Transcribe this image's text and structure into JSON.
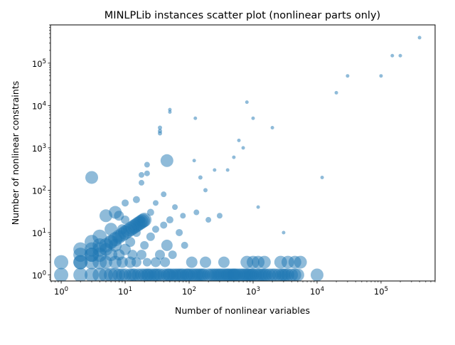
{
  "chart_data": {
    "type": "scatter",
    "title": "MINLPLib instances scatter plot (nonlinear parts only)",
    "xlabel": "Number of nonlinear variables",
    "ylabel": "Number of nonlinear constraints",
    "x_scale": "log",
    "y_scale": "log",
    "xlim": [
      0.68,
      700000
    ],
    "ylim": [
      0.72,
      800000
    ],
    "x_ticks": [
      1,
      10,
      100,
      1000,
      10000,
      100000
    ],
    "y_ticks": [
      1,
      10,
      100,
      1000,
      10000,
      100000
    ],
    "x_tick_labels": [
      "10^0",
      "10^1",
      "10^2",
      "10^3",
      "10^4",
      "10^5"
    ],
    "y_tick_labels": [
      "10^0",
      "10^1",
      "10^2",
      "10^3",
      "10^4",
      "10^5"
    ],
    "grid": false,
    "legend": "none",
    "marker_color": "#1f77b4",
    "marker_alpha": 0.5,
    "series": [
      {
        "points": [
          [
            1,
            1,
            20
          ],
          [
            1,
            2,
            20
          ],
          [
            2,
            1,
            20
          ],
          [
            2,
            2,
            20
          ],
          [
            2,
            3,
            20
          ],
          [
            2,
            4,
            20
          ],
          [
            3,
            1,
            20
          ],
          [
            3,
            2,
            20
          ],
          [
            3,
            3,
            20
          ],
          [
            3,
            4,
            20
          ],
          [
            3,
            6,
            20
          ],
          [
            3,
            200,
            18
          ],
          [
            4,
            1,
            20
          ],
          [
            4,
            2,
            20
          ],
          [
            4,
            3,
            20
          ],
          [
            4,
            5,
            20
          ],
          [
            4,
            8,
            20
          ],
          [
            5,
            1,
            20
          ],
          [
            5,
            2,
            18
          ],
          [
            5,
            4,
            18
          ],
          [
            5,
            25,
            18
          ],
          [
            6,
            1,
            20
          ],
          [
            6,
            3,
            18
          ],
          [
            6,
            6,
            18
          ],
          [
            6,
            12,
            18
          ],
          [
            7,
            1,
            20
          ],
          [
            7,
            2,
            18
          ],
          [
            7,
            5,
            18
          ],
          [
            7,
            30,
            18
          ],
          [
            8,
            1,
            18
          ],
          [
            8,
            3,
            16
          ],
          [
            8,
            8,
            16
          ],
          [
            8,
            25,
            14
          ],
          [
            9,
            1,
            18
          ],
          [
            9,
            2,
            16
          ],
          [
            9,
            12,
            14
          ],
          [
            10,
            1,
            18
          ],
          [
            10,
            4,
            16
          ],
          [
            10,
            20,
            12
          ],
          [
            10,
            50,
            10
          ],
          [
            12,
            1,
            18
          ],
          [
            12,
            2,
            16
          ],
          [
            12,
            6,
            14
          ],
          [
            13,
            1,
            18
          ],
          [
            13,
            3,
            14
          ],
          [
            14,
            1,
            18
          ],
          [
            15,
            2,
            14
          ],
          [
            15,
            10,
            12
          ],
          [
            15,
            60,
            10
          ],
          [
            16,
            1,
            18
          ],
          [
            18,
            1,
            18
          ],
          [
            18,
            3,
            14
          ],
          [
            18,
            20,
            10
          ],
          [
            18,
            150,
            8
          ],
          [
            18,
            230,
            8
          ],
          [
            20,
            1,
            18
          ],
          [
            20,
            5,
            12
          ],
          [
            22,
            1,
            18
          ],
          [
            22,
            2,
            12
          ],
          [
            22,
            400,
            8
          ],
          [
            22,
            250,
            8
          ],
          [
            23,
            1,
            18
          ],
          [
            25,
            1,
            18
          ],
          [
            25,
            8,
            12
          ],
          [
            25,
            30,
            10
          ],
          [
            28,
            1,
            18
          ],
          [
            30,
            1,
            18
          ],
          [
            30,
            2,
            14
          ],
          [
            30,
            12,
            10
          ],
          [
            30,
            50,
            8
          ],
          [
            32,
            1,
            18
          ],
          [
            35,
            1,
            18
          ],
          [
            35,
            3,
            14
          ],
          [
            35,
            3000,
            6
          ],
          [
            35,
            2500,
            6
          ],
          [
            35,
            2200,
            6
          ],
          [
            40,
            1,
            18
          ],
          [
            40,
            15,
            10
          ],
          [
            40,
            80,
            8
          ],
          [
            42,
            2,
            14
          ],
          [
            45,
            1,
            18
          ],
          [
            45,
            500,
            18
          ],
          [
            45,
            5,
            16
          ],
          [
            48,
            1,
            18
          ],
          [
            50,
            1,
            18
          ],
          [
            50,
            20,
            10
          ],
          [
            50,
            8000,
            5
          ],
          [
            50,
            7000,
            5
          ],
          [
            55,
            1,
            18
          ],
          [
            55,
            3,
            12
          ],
          [
            60,
            1,
            18
          ],
          [
            60,
            40,
            8
          ],
          [
            65,
            1,
            18
          ],
          [
            70,
            1,
            18
          ],
          [
            70,
            10,
            10
          ],
          [
            75,
            1,
            18
          ],
          [
            80,
            1,
            18
          ],
          [
            80,
            25,
            8
          ],
          [
            85,
            5,
            10
          ],
          [
            90,
            1,
            18
          ],
          [
            95,
            1,
            18
          ],
          [
            100,
            1,
            18
          ],
          [
            110,
            1,
            18
          ],
          [
            110,
            2,
            16
          ],
          [
            120,
            1,
            18
          ],
          [
            120,
            500,
            5
          ],
          [
            125,
            5000,
            5
          ],
          [
            130,
            1,
            18
          ],
          [
            130,
            30,
            8
          ],
          [
            140,
            1,
            18
          ],
          [
            150,
            1,
            18
          ],
          [
            150,
            200,
            6
          ],
          [
            160,
            1,
            18
          ],
          [
            170,
            1,
            18
          ],
          [
            180,
            2,
            16
          ],
          [
            180,
            100,
            6
          ],
          [
            200,
            1,
            18
          ],
          [
            200,
            20,
            8
          ],
          [
            220,
            1,
            18
          ],
          [
            240,
            1,
            18
          ],
          [
            250,
            300,
            5
          ],
          [
            260,
            1,
            18
          ],
          [
            280,
            1,
            18
          ],
          [
            300,
            1,
            18
          ],
          [
            300,
            25,
            8
          ],
          [
            320,
            1,
            18
          ],
          [
            350,
            1,
            18
          ],
          [
            350,
            2,
            16
          ],
          [
            380,
            1,
            18
          ],
          [
            400,
            1,
            18
          ],
          [
            400,
            300,
            5
          ],
          [
            420,
            1,
            18
          ],
          [
            450,
            1,
            18
          ],
          [
            480,
            1,
            18
          ],
          [
            500,
            1,
            18
          ],
          [
            500,
            600,
            5
          ],
          [
            520,
            1,
            18
          ],
          [
            550,
            1,
            18
          ],
          [
            600,
            1,
            18
          ],
          [
            600,
            1500,
            5
          ],
          [
            650,
            1,
            18
          ],
          [
            700,
            1,
            18
          ],
          [
            700,
            1000,
            5
          ],
          [
            750,
            1,
            18
          ],
          [
            800,
            1,
            18
          ],
          [
            800,
            2,
            18
          ],
          [
            800,
            12000,
            5
          ],
          [
            850,
            1,
            18
          ],
          [
            900,
            1,
            18
          ],
          [
            950,
            1,
            18
          ],
          [
            1000,
            1,
            18
          ],
          [
            1000,
            2,
            18
          ],
          [
            1000,
            5000,
            5
          ],
          [
            1100,
            1,
            18
          ],
          [
            1200,
            1,
            18
          ],
          [
            1200,
            2,
            18
          ],
          [
            1200,
            40,
            5
          ],
          [
            1300,
            1,
            18
          ],
          [
            1400,
            1,
            18
          ],
          [
            1500,
            1,
            18
          ],
          [
            1500,
            2,
            18
          ],
          [
            1600,
            1,
            18
          ],
          [
            1800,
            1,
            18
          ],
          [
            2000,
            1,
            18
          ],
          [
            2000,
            3000,
            5
          ],
          [
            2200,
            1,
            18
          ],
          [
            2500,
            1,
            18
          ],
          [
            2700,
            2,
            18
          ],
          [
            2800,
            1,
            18
          ],
          [
            3000,
            1,
            18
          ],
          [
            3000,
            10,
            5
          ],
          [
            3200,
            1,
            18
          ],
          [
            3500,
            1,
            18
          ],
          [
            3500,
            2,
            18
          ],
          [
            4000,
            1,
            18
          ],
          [
            4500,
            1,
            18
          ],
          [
            4500,
            2,
            18
          ],
          [
            5000,
            1,
            18
          ],
          [
            5500,
            2,
            18
          ],
          [
            10000,
            1,
            18
          ],
          [
            12000,
            200,
            5
          ],
          [
            20000,
            20000,
            5
          ],
          [
            30000,
            50000,
            5
          ],
          [
            100000,
            50000,
            5
          ],
          [
            150000,
            150000,
            5
          ],
          [
            200000,
            150000,
            5
          ],
          [
            400000,
            400000,
            5
          ],
          [
            2,
            2,
            20
          ],
          [
            3,
            3,
            20
          ],
          [
            4,
            4,
            20
          ],
          [
            5,
            5,
            20
          ],
          [
            6,
            6,
            20
          ],
          [
            7,
            7,
            20
          ],
          [
            8,
            8,
            20
          ],
          [
            9,
            9,
            20
          ],
          [
            10,
            10,
            20
          ],
          [
            11,
            11,
            20
          ],
          [
            12,
            12,
            20
          ],
          [
            13,
            13,
            20
          ],
          [
            14,
            14,
            20
          ],
          [
            15,
            15,
            20
          ],
          [
            16,
            16,
            20
          ],
          [
            17,
            17,
            20
          ],
          [
            18,
            18,
            20
          ],
          [
            19,
            19,
            20
          ],
          [
            20,
            20,
            20
          ]
        ]
      }
    ]
  }
}
